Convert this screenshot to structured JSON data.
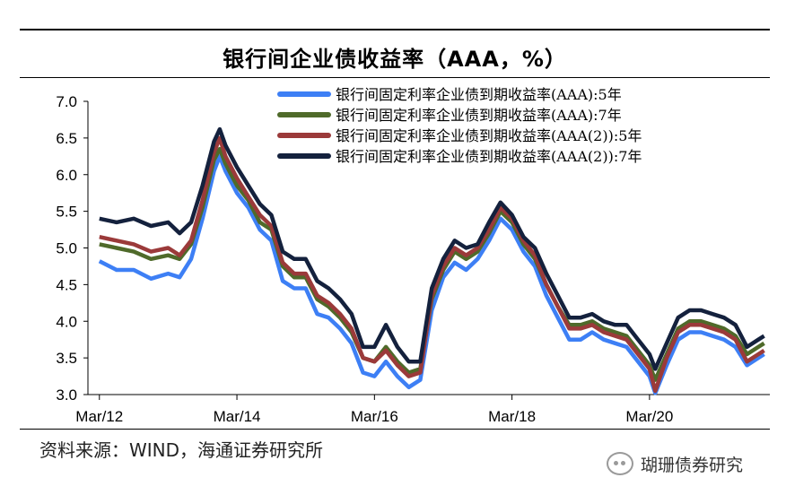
{
  "title": "银行间企业债收益率（AAA，%）",
  "source": "资料来源：WIND，海通证券研究所",
  "watermark": "瑚珊债券研究",
  "chart_data": {
    "type": "line",
    "title": "银行间企业债收益率（AAA，%）",
    "ylim": [
      3.0,
      7.0
    ],
    "yticks": [
      "7.0",
      "6.5",
      "6.0",
      "5.5",
      "5.0",
      "4.5",
      "4.0",
      "3.5",
      "3.0"
    ],
    "xlim": [
      "2012-01",
      "2021-12"
    ],
    "xticks": [
      {
        "date": "2012-03",
        "label": "Mar/12"
      },
      {
        "date": "2014-03",
        "label": "Mar/14"
      },
      {
        "date": "2016-03",
        "label": "Mar/16"
      },
      {
        "date": "2018-03",
        "label": "Mar/18"
      },
      {
        "date": "2020-03",
        "label": "Mar/20"
      }
    ],
    "legend_position": "top-right",
    "grid": false,
    "series": [
      {
        "name": "银行间固定利率企业债到期收益率(AAA):5年",
        "color": "#3d7ff5",
        "points": [
          [
            "2012-03",
            4.82
          ],
          [
            "2012-06",
            4.7
          ],
          [
            "2012-09",
            4.7
          ],
          [
            "2012-12",
            4.58
          ],
          [
            "2013-03",
            4.65
          ],
          [
            "2013-05",
            4.6
          ],
          [
            "2013-07",
            4.85
          ],
          [
            "2013-09",
            5.4
          ],
          [
            "2013-11",
            6.05
          ],
          [
            "2013-12",
            6.25
          ],
          [
            "2014-01",
            6.05
          ],
          [
            "2014-02",
            5.9
          ],
          [
            "2014-03",
            5.75
          ],
          [
            "2014-05",
            5.55
          ],
          [
            "2014-07",
            5.25
          ],
          [
            "2014-09",
            5.1
          ],
          [
            "2014-11",
            4.55
          ],
          [
            "2015-01",
            4.45
          ],
          [
            "2015-03",
            4.45
          ],
          [
            "2015-05",
            4.1
          ],
          [
            "2015-07",
            4.05
          ],
          [
            "2015-09",
            3.9
          ],
          [
            "2015-11",
            3.7
          ],
          [
            "2016-01",
            3.3
          ],
          [
            "2016-03",
            3.25
          ],
          [
            "2016-05",
            3.45
          ],
          [
            "2016-07",
            3.25
          ],
          [
            "2016-09",
            3.1
          ],
          [
            "2016-11",
            3.2
          ],
          [
            "2017-01",
            4.15
          ],
          [
            "2017-03",
            4.6
          ],
          [
            "2017-05",
            4.8
          ],
          [
            "2017-07",
            4.7
          ],
          [
            "2017-09",
            4.85
          ],
          [
            "2017-11",
            5.1
          ],
          [
            "2018-01",
            5.4
          ],
          [
            "2018-03",
            5.25
          ],
          [
            "2018-05",
            4.95
          ],
          [
            "2018-07",
            4.75
          ],
          [
            "2018-09",
            4.35
          ],
          [
            "2018-11",
            4.05
          ],
          [
            "2019-01",
            3.75
          ],
          [
            "2019-03",
            3.75
          ],
          [
            "2019-05",
            3.85
          ],
          [
            "2019-07",
            3.75
          ],
          [
            "2019-09",
            3.7
          ],
          [
            "2019-11",
            3.65
          ],
          [
            "2020-01",
            3.45
          ],
          [
            "2020-03",
            3.25
          ],
          [
            "2020-04",
            3.02
          ],
          [
            "2020-06",
            3.4
          ],
          [
            "2020-08",
            3.75
          ],
          [
            "2020-10",
            3.85
          ],
          [
            "2020-12",
            3.85
          ],
          [
            "2021-02",
            3.8
          ],
          [
            "2021-04",
            3.75
          ],
          [
            "2021-06",
            3.65
          ],
          [
            "2021-08",
            3.4
          ],
          [
            "2021-10",
            3.5
          ],
          [
            "2021-11",
            3.55
          ]
        ]
      },
      {
        "name": "银行间固定利率企业债到期收益率(AAA):7年",
        "color": "#4f6a2a",
        "points": [
          [
            "2012-03",
            5.05
          ],
          [
            "2012-06",
            5.0
          ],
          [
            "2012-09",
            4.95
          ],
          [
            "2012-12",
            4.85
          ],
          [
            "2013-03",
            4.9
          ],
          [
            "2013-05",
            4.85
          ],
          [
            "2013-07",
            5.05
          ],
          [
            "2013-09",
            5.55
          ],
          [
            "2013-11",
            6.2
          ],
          [
            "2013-12",
            6.35
          ],
          [
            "2014-01",
            6.15
          ],
          [
            "2014-02",
            6.0
          ],
          [
            "2014-03",
            5.85
          ],
          [
            "2014-05",
            5.65
          ],
          [
            "2014-07",
            5.35
          ],
          [
            "2014-09",
            5.25
          ],
          [
            "2014-11",
            4.75
          ],
          [
            "2015-01",
            4.6
          ],
          [
            "2015-03",
            4.6
          ],
          [
            "2015-05",
            4.3
          ],
          [
            "2015-07",
            4.2
          ],
          [
            "2015-09",
            4.05
          ],
          [
            "2015-11",
            3.85
          ],
          [
            "2016-01",
            3.5
          ],
          [
            "2016-03",
            3.45
          ],
          [
            "2016-05",
            3.65
          ],
          [
            "2016-07",
            3.45
          ],
          [
            "2016-09",
            3.3
          ],
          [
            "2016-11",
            3.35
          ],
          [
            "2017-01",
            4.3
          ],
          [
            "2017-03",
            4.7
          ],
          [
            "2017-05",
            4.95
          ],
          [
            "2017-07",
            4.85
          ],
          [
            "2017-09",
            4.95
          ],
          [
            "2017-11",
            5.2
          ],
          [
            "2018-01",
            5.5
          ],
          [
            "2018-03",
            5.35
          ],
          [
            "2018-05",
            5.05
          ],
          [
            "2018-07",
            4.85
          ],
          [
            "2018-09",
            4.5
          ],
          [
            "2018-11",
            4.2
          ],
          [
            "2019-01",
            3.95
          ],
          [
            "2019-03",
            3.95
          ],
          [
            "2019-05",
            4.0
          ],
          [
            "2019-07",
            3.9
          ],
          [
            "2019-09",
            3.85
          ],
          [
            "2019-11",
            3.8
          ],
          [
            "2020-01",
            3.6
          ],
          [
            "2020-03",
            3.4
          ],
          [
            "2020-04",
            3.2
          ],
          [
            "2020-06",
            3.55
          ],
          [
            "2020-08",
            3.9
          ],
          [
            "2020-10",
            4.0
          ],
          [
            "2020-12",
            4.0
          ],
          [
            "2021-02",
            3.95
          ],
          [
            "2021-04",
            3.9
          ],
          [
            "2021-06",
            3.8
          ],
          [
            "2021-08",
            3.55
          ],
          [
            "2021-10",
            3.65
          ],
          [
            "2021-11",
            3.7
          ]
        ]
      },
      {
        "name": "银行间固定利率企业债到期收益率(AAA(2)):5年",
        "color": "#9b3a3a",
        "points": [
          [
            "2012-03",
            5.15
          ],
          [
            "2012-06",
            5.1
          ],
          [
            "2012-09",
            5.05
          ],
          [
            "2012-12",
            4.95
          ],
          [
            "2013-03",
            5.0
          ],
          [
            "2013-05",
            4.9
          ],
          [
            "2013-07",
            5.1
          ],
          [
            "2013-09",
            5.65
          ],
          [
            "2013-11",
            6.3
          ],
          [
            "2013-12",
            6.5
          ],
          [
            "2014-01",
            6.25
          ],
          [
            "2014-02",
            6.1
          ],
          [
            "2014-03",
            5.95
          ],
          [
            "2014-05",
            5.7
          ],
          [
            "2014-07",
            5.45
          ],
          [
            "2014-09",
            5.3
          ],
          [
            "2014-11",
            4.8
          ],
          [
            "2015-01",
            4.65
          ],
          [
            "2015-03",
            4.65
          ],
          [
            "2015-05",
            4.35
          ],
          [
            "2015-07",
            4.25
          ],
          [
            "2015-09",
            4.1
          ],
          [
            "2015-11",
            3.9
          ],
          [
            "2016-01",
            3.5
          ],
          [
            "2016-03",
            3.45
          ],
          [
            "2016-05",
            3.6
          ],
          [
            "2016-07",
            3.4
          ],
          [
            "2016-09",
            3.25
          ],
          [
            "2016-11",
            3.3
          ],
          [
            "2017-01",
            4.35
          ],
          [
            "2017-03",
            4.75
          ],
          [
            "2017-05",
            5.0
          ],
          [
            "2017-07",
            4.9
          ],
          [
            "2017-09",
            5.0
          ],
          [
            "2017-11",
            5.25
          ],
          [
            "2018-01",
            5.55
          ],
          [
            "2018-03",
            5.4
          ],
          [
            "2018-05",
            5.1
          ],
          [
            "2018-07",
            4.9
          ],
          [
            "2018-09",
            4.5
          ],
          [
            "2018-11",
            4.2
          ],
          [
            "2019-01",
            3.9
          ],
          [
            "2019-03",
            3.9
          ],
          [
            "2019-05",
            3.95
          ],
          [
            "2019-07",
            3.85
          ],
          [
            "2019-09",
            3.8
          ],
          [
            "2019-11",
            3.75
          ],
          [
            "2020-01",
            3.55
          ],
          [
            "2020-03",
            3.35
          ],
          [
            "2020-04",
            3.05
          ],
          [
            "2020-06",
            3.5
          ],
          [
            "2020-08",
            3.85
          ],
          [
            "2020-10",
            3.95
          ],
          [
            "2020-12",
            3.95
          ],
          [
            "2021-02",
            3.9
          ],
          [
            "2021-04",
            3.85
          ],
          [
            "2021-06",
            3.75
          ],
          [
            "2021-08",
            3.45
          ],
          [
            "2021-10",
            3.55
          ],
          [
            "2021-11",
            3.6
          ]
        ]
      },
      {
        "name": "银行间固定利率企业债到期收益率(AAA(2)):7年",
        "color": "#14213d",
        "points": [
          [
            "2012-03",
            5.4
          ],
          [
            "2012-06",
            5.35
          ],
          [
            "2012-09",
            5.4
          ],
          [
            "2012-12",
            5.3
          ],
          [
            "2013-03",
            5.35
          ],
          [
            "2013-05",
            5.2
          ],
          [
            "2013-07",
            5.35
          ],
          [
            "2013-09",
            5.85
          ],
          [
            "2013-11",
            6.45
          ],
          [
            "2013-12",
            6.62
          ],
          [
            "2014-01",
            6.4
          ],
          [
            "2014-02",
            6.25
          ],
          [
            "2014-03",
            6.1
          ],
          [
            "2014-05",
            5.85
          ],
          [
            "2014-07",
            5.6
          ],
          [
            "2014-09",
            5.45
          ],
          [
            "2014-11",
            4.95
          ],
          [
            "2015-01",
            4.85
          ],
          [
            "2015-03",
            4.85
          ],
          [
            "2015-05",
            4.55
          ],
          [
            "2015-07",
            4.45
          ],
          [
            "2015-09",
            4.3
          ],
          [
            "2015-11",
            4.1
          ],
          [
            "2016-01",
            3.65
          ],
          [
            "2016-03",
            3.65
          ],
          [
            "2016-05",
            3.95
          ],
          [
            "2016-07",
            3.65
          ],
          [
            "2016-09",
            3.45
          ],
          [
            "2016-11",
            3.45
          ],
          [
            "2017-01",
            4.45
          ],
          [
            "2017-03",
            4.85
          ],
          [
            "2017-05",
            5.1
          ],
          [
            "2017-07",
            5.0
          ],
          [
            "2017-09",
            5.05
          ],
          [
            "2017-11",
            5.35
          ],
          [
            "2018-01",
            5.62
          ],
          [
            "2018-03",
            5.45
          ],
          [
            "2018-05",
            5.15
          ],
          [
            "2018-07",
            5.0
          ],
          [
            "2018-09",
            4.65
          ],
          [
            "2018-11",
            4.35
          ],
          [
            "2019-01",
            4.05
          ],
          [
            "2019-03",
            4.05
          ],
          [
            "2019-05",
            4.1
          ],
          [
            "2019-07",
            4.0
          ],
          [
            "2019-09",
            3.95
          ],
          [
            "2019-11",
            3.95
          ],
          [
            "2020-01",
            3.75
          ],
          [
            "2020-03",
            3.55
          ],
          [
            "2020-04",
            3.35
          ],
          [
            "2020-06",
            3.7
          ],
          [
            "2020-08",
            4.05
          ],
          [
            "2020-10",
            4.15
          ],
          [
            "2020-12",
            4.15
          ],
          [
            "2021-02",
            4.1
          ],
          [
            "2021-04",
            4.05
          ],
          [
            "2021-06",
            3.95
          ],
          [
            "2021-08",
            3.65
          ],
          [
            "2021-10",
            3.75
          ],
          [
            "2021-11",
            3.8
          ]
        ]
      }
    ]
  }
}
